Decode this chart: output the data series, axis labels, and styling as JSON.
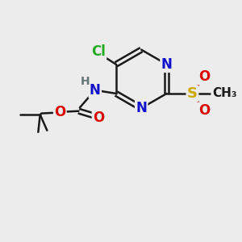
{
  "bg_color": "#ececec",
  "bond_color": "#1a1a1a",
  "bond_width": 1.8,
  "atom_colors": {
    "Cl": "#22aa22",
    "N": "#1111cc",
    "S": "#ccaa00",
    "O": "#dd0000",
    "H": "#667777",
    "C": "#1a1a1a"
  },
  "font_size": 12,
  "font_size_s": 10
}
